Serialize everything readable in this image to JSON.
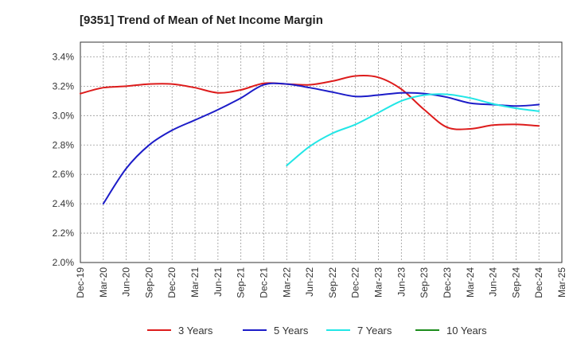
{
  "chart_data": {
    "type": "line",
    "title": "[9351]  Trend of Mean of Net Income Margin",
    "x_ticks": [
      "Dec-19",
      "Mar-20",
      "Jun-20",
      "Sep-20",
      "Dec-20",
      "Mar-21",
      "Jun-21",
      "Sep-21",
      "Dec-21",
      "Mar-22",
      "Jun-22",
      "Sep-22",
      "Dec-22",
      "Mar-23",
      "Jun-23",
      "Sep-23",
      "Dec-23",
      "Mar-24",
      "Jun-24",
      "Sep-24",
      "Dec-24",
      "Mar-25"
    ],
    "y_ticks": [
      "2.0%",
      "2.2%",
      "2.4%",
      "2.6%",
      "2.8%",
      "3.0%",
      "3.2%",
      "3.4%"
    ],
    "ylim": [
      2.0,
      3.5
    ],
    "y_unit": "%",
    "grid": true,
    "legend_position": "bottom",
    "series": [
      {
        "name": "3 Years",
        "color": "#dd1c1c",
        "points": [
          [
            "Dec-19",
            3.15
          ],
          [
            "Mar-20",
            3.19
          ],
          [
            "Jun-20",
            3.2
          ],
          [
            "Sep-20",
            3.215
          ],
          [
            "Dec-20",
            3.215
          ],
          [
            "Mar-21",
            3.19
          ],
          [
            "Jun-21",
            3.155
          ],
          [
            "Sep-21",
            3.175
          ],
          [
            "Dec-21",
            3.22
          ],
          [
            "Mar-22",
            3.215
          ],
          [
            "Jun-22",
            3.21
          ],
          [
            "Sep-22",
            3.235
          ],
          [
            "Dec-22",
            3.27
          ],
          [
            "Mar-23",
            3.26
          ],
          [
            "Jun-23",
            3.18
          ],
          [
            "Sep-23",
            3.04
          ],
          [
            "Dec-23",
            2.92
          ],
          [
            "Mar-24",
            2.91
          ],
          [
            "Jun-24",
            2.935
          ],
          [
            "Sep-24",
            2.94
          ],
          [
            "Dec-24",
            2.93
          ]
        ]
      },
      {
        "name": "5 Years",
        "color": "#1c1cc8",
        "points": [
          [
            "Mar-20",
            2.4
          ],
          [
            "Jun-20",
            2.64
          ],
          [
            "Sep-20",
            2.8
          ],
          [
            "Dec-20",
            2.9
          ],
          [
            "Mar-21",
            2.97
          ],
          [
            "Jun-21",
            3.04
          ],
          [
            "Sep-21",
            3.12
          ],
          [
            "Dec-21",
            3.21
          ],
          [
            "Mar-22",
            3.215
          ],
          [
            "Jun-22",
            3.19
          ],
          [
            "Sep-22",
            3.16
          ],
          [
            "Dec-22",
            3.13
          ],
          [
            "Mar-23",
            3.14
          ],
          [
            "Jun-23",
            3.155
          ],
          [
            "Sep-23",
            3.15
          ],
          [
            "Dec-23",
            3.125
          ],
          [
            "Mar-24",
            3.085
          ],
          [
            "Jun-24",
            3.075
          ],
          [
            "Sep-24",
            3.065
          ],
          [
            "Dec-24",
            3.075
          ]
        ]
      },
      {
        "name": "7 Years",
        "color": "#22e6e6",
        "points": [
          [
            "Mar-22",
            2.66
          ],
          [
            "Jun-22",
            2.79
          ],
          [
            "Sep-22",
            2.88
          ],
          [
            "Dec-22",
            2.94
          ],
          [
            "Mar-23",
            3.02
          ],
          [
            "Jun-23",
            3.1
          ],
          [
            "Sep-23",
            3.14
          ],
          [
            "Dec-23",
            3.145
          ],
          [
            "Mar-24",
            3.12
          ],
          [
            "Jun-24",
            3.08
          ],
          [
            "Sep-24",
            3.05
          ],
          [
            "Dec-24",
            3.03
          ]
        ]
      },
      {
        "name": "10 Years",
        "color": "#1c8c1c",
        "points": []
      }
    ]
  }
}
